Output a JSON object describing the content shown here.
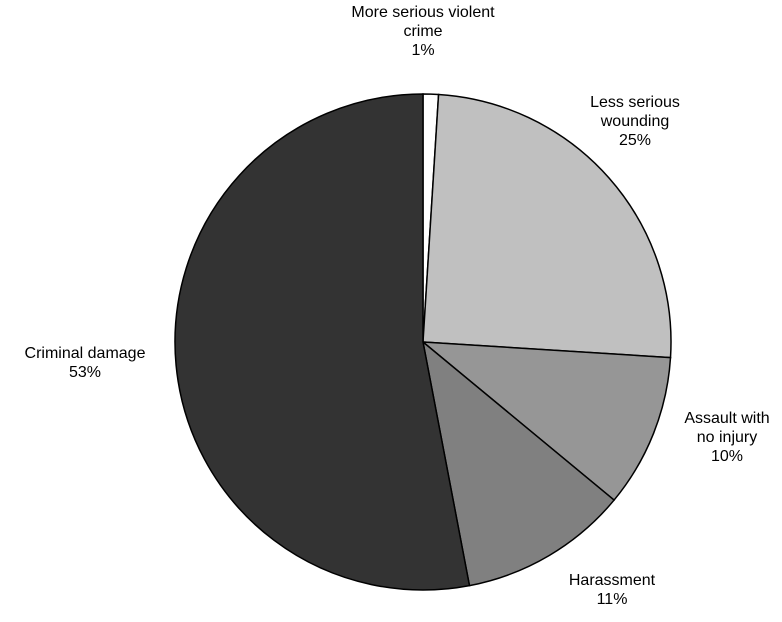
{
  "chart_data": {
    "type": "pie",
    "categories": [
      "More serious violent crime",
      "Less serious wounding",
      "Assault with no injury",
      "Harassment",
      "Criminal damage"
    ],
    "values": [
      1,
      25,
      10,
      11,
      53
    ],
    "value_labels": [
      "1%",
      "25%",
      "10%",
      "11%",
      "53%"
    ],
    "colors": [
      "#ffffff",
      "#c0c0c0",
      "#969696",
      "#808080",
      "#333333"
    ]
  }
}
